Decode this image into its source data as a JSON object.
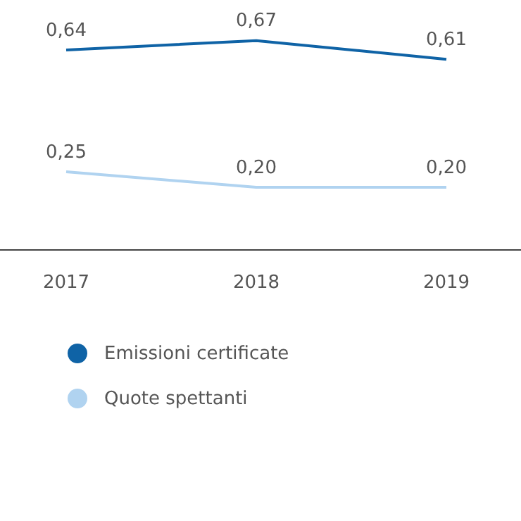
{
  "chart_data": {
    "type": "line",
    "categories": [
      "2017",
      "2018",
      "2019"
    ],
    "legend": "bottom",
    "marker": "none",
    "grid": false,
    "series": [
      {
        "name": "Emissioni certificate",
        "color": "#0f63a6",
        "values": [
          0.64,
          0.67,
          0.61
        ],
        "value_labels": [
          "0,64",
          "0,67",
          "0,61"
        ]
      },
      {
        "name": "Quote spettanti",
        "color": "#b0d3f0",
        "values": [
          0.25,
          0.2,
          0.2
        ],
        "value_labels": [
          "0,25",
          "0,20",
          "0,20"
        ]
      }
    ]
  }
}
